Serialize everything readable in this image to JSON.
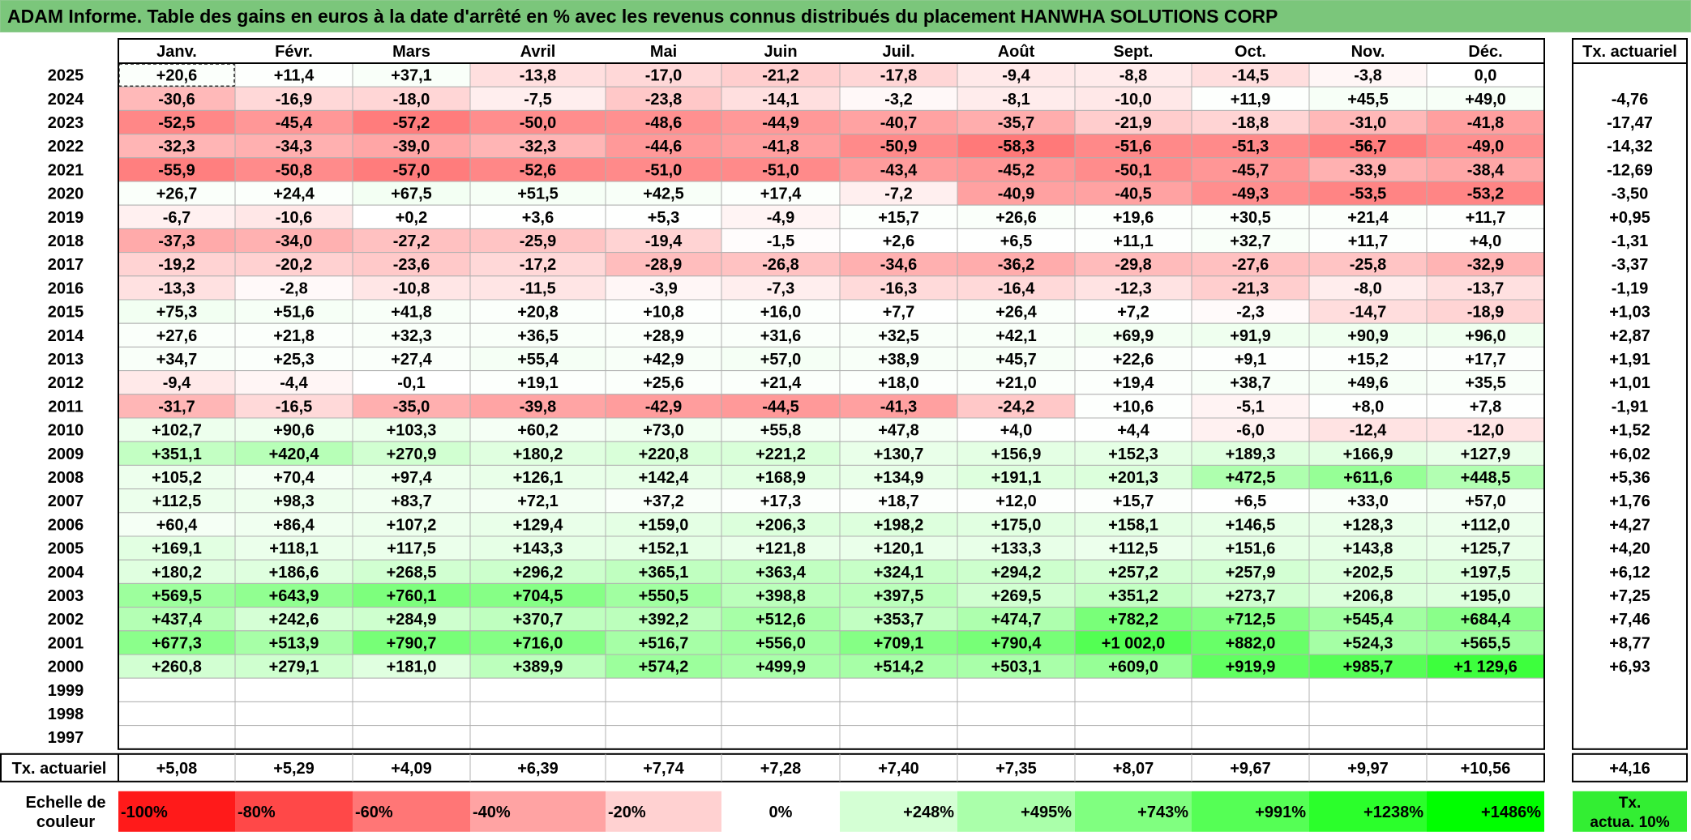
{
  "page_title": "ADAM Informe. Table des gains en euros à la date d'arrêté en % avec les revenus connus distribués du placement HANWHA SOLUTIONS CORP",
  "chart_data": {
    "type": "heatmap",
    "title": "ADAM Informe. Table des gains en euros à la date d'arrêté en % avec les revenus connus distribués du placement HANWHA SOLUTIONS CORP",
    "columns": [
      "Janv.",
      "Févr.",
      "Mars",
      "Avril",
      "Mai",
      "Juin",
      "Juil.",
      "Août",
      "Sept.",
      "Oct.",
      "Nov.",
      "Déc."
    ],
    "annual_header": "Tx. actuariel",
    "rows": [
      {
        "year": "2025",
        "values": [
          "+20,6",
          "+11,4",
          "+37,1",
          "-13,8",
          "-17,0",
          "-21,2",
          "-17,8",
          "-9,4",
          "-8,8",
          "-14,5",
          "-3,8",
          "0,0"
        ],
        "rate": ""
      },
      {
        "year": "2024",
        "values": [
          "-30,6",
          "-16,9",
          "-18,0",
          "-7,5",
          "-23,8",
          "-14,1",
          "-3,2",
          "-8,1",
          "-10,0",
          "+11,9",
          "+45,5",
          "+49,0"
        ],
        "rate": "-4,76"
      },
      {
        "year": "2023",
        "values": [
          "-52,5",
          "-45,4",
          "-57,2",
          "-50,0",
          "-48,6",
          "-44,9",
          "-40,7",
          "-35,7",
          "-21,9",
          "-18,8",
          "-31,0",
          "-41,8"
        ],
        "rate": "-17,47"
      },
      {
        "year": "2022",
        "values": [
          "-32,3",
          "-34,3",
          "-39,0",
          "-32,3",
          "-44,6",
          "-41,8",
          "-50,9",
          "-58,3",
          "-51,6",
          "-51,3",
          "-56,7",
          "-49,0"
        ],
        "rate": "-14,32"
      },
      {
        "year": "2021",
        "values": [
          "-55,9",
          "-50,8",
          "-57,0",
          "-52,6",
          "-51,0",
          "-51,0",
          "-43,4",
          "-45,2",
          "-50,1",
          "-45,7",
          "-33,9",
          "-38,4"
        ],
        "rate": "-12,69"
      },
      {
        "year": "2020",
        "values": [
          "+26,7",
          "+24,4",
          "+67,5",
          "+51,5",
          "+42,5",
          "+17,4",
          "-7,2",
          "-40,9",
          "-40,5",
          "-49,3",
          "-53,5",
          "-53,2"
        ],
        "rate": "-3,50"
      },
      {
        "year": "2019",
        "values": [
          "-6,7",
          "-10,6",
          "+0,2",
          "+3,6",
          "+5,3",
          "-4,9",
          "+15,7",
          "+26,6",
          "+19,6",
          "+30,5",
          "+21,4",
          "+11,7"
        ],
        "rate": "+0,95"
      },
      {
        "year": "2018",
        "values": [
          "-37,3",
          "-34,0",
          "-27,2",
          "-25,9",
          "-19,4",
          "-1,5",
          "+2,6",
          "+6,5",
          "+11,1",
          "+32,7",
          "+11,7",
          "+4,0"
        ],
        "rate": "-1,31"
      },
      {
        "year": "2017",
        "values": [
          "-19,2",
          "-20,2",
          "-23,6",
          "-17,2",
          "-28,9",
          "-26,8",
          "-34,6",
          "-36,2",
          "-29,8",
          "-27,6",
          "-25,8",
          "-32,9"
        ],
        "rate": "-3,37"
      },
      {
        "year": "2016",
        "values": [
          "-13,3",
          "-2,8",
          "-10,8",
          "-11,5",
          "-3,9",
          "-7,3",
          "-16,3",
          "-16,4",
          "-12,3",
          "-21,3",
          "-8,0",
          "-13,7"
        ],
        "rate": "-1,19"
      },
      {
        "year": "2015",
        "values": [
          "+75,3",
          "+51,6",
          "+41,8",
          "+20,8",
          "+10,8",
          "+16,0",
          "+7,7",
          "+26,4",
          "+7,2",
          "-2,3",
          "-14,7",
          "-18,9"
        ],
        "rate": "+1,03"
      },
      {
        "year": "2014",
        "values": [
          "+27,6",
          "+21,8",
          "+32,3",
          "+36,5",
          "+28,9",
          "+31,6",
          "+32,5",
          "+42,1",
          "+69,9",
          "+91,9",
          "+90,9",
          "+96,0"
        ],
        "rate": "+2,87"
      },
      {
        "year": "2013",
        "values": [
          "+34,7",
          "+25,3",
          "+27,4",
          "+55,4",
          "+42,9",
          "+57,0",
          "+38,9",
          "+45,7",
          "+22,6",
          "+9,1",
          "+15,2",
          "+17,7"
        ],
        "rate": "+1,91"
      },
      {
        "year": "2012",
        "values": [
          "-9,4",
          "-4,4",
          "-0,1",
          "+19,1",
          "+25,6",
          "+21,4",
          "+18,0",
          "+21,0",
          "+19,4",
          "+38,7",
          "+49,6",
          "+35,5"
        ],
        "rate": "+1,01"
      },
      {
        "year": "2011",
        "values": [
          "-31,7",
          "-16,5",
          "-35,0",
          "-39,8",
          "-42,9",
          "-44,5",
          "-41,3",
          "-24,2",
          "+10,6",
          "-5,1",
          "+8,0",
          "+7,8"
        ],
        "rate": "-1,91"
      },
      {
        "year": "2010",
        "values": [
          "+102,7",
          "+90,6",
          "+103,3",
          "+60,2",
          "+73,0",
          "+55,8",
          "+47,8",
          "+4,0",
          "+4,4",
          "-6,0",
          "-12,4",
          "-12,0"
        ],
        "rate": "+1,52"
      },
      {
        "year": "2009",
        "values": [
          "+351,1",
          "+420,4",
          "+270,9",
          "+180,2",
          "+220,8",
          "+221,2",
          "+130,7",
          "+156,9",
          "+152,3",
          "+189,3",
          "+166,9",
          "+127,9"
        ],
        "rate": "+6,02"
      },
      {
        "year": "2008",
        "values": [
          "+105,2",
          "+70,4",
          "+97,4",
          "+126,1",
          "+142,4",
          "+168,9",
          "+134,9",
          "+191,1",
          "+201,3",
          "+472,5",
          "+611,6",
          "+448,5"
        ],
        "rate": "+5,36"
      },
      {
        "year": "2007",
        "values": [
          "+112,5",
          "+98,3",
          "+83,7",
          "+72,1",
          "+37,2",
          "+17,3",
          "+18,7",
          "+12,0",
          "+15,7",
          "+6,5",
          "+33,0",
          "+57,0"
        ],
        "rate": "+1,76"
      },
      {
        "year": "2006",
        "values": [
          "+60,4",
          "+86,4",
          "+107,2",
          "+129,4",
          "+159,0",
          "+206,3",
          "+198,2",
          "+175,0",
          "+158,1",
          "+146,5",
          "+128,3",
          "+112,0"
        ],
        "rate": "+4,27"
      },
      {
        "year": "2005",
        "values": [
          "+169,1",
          "+118,1",
          "+117,5",
          "+143,3",
          "+152,1",
          "+121,8",
          "+120,1",
          "+133,3",
          "+112,5",
          "+151,6",
          "+143,8",
          "+125,7"
        ],
        "rate": "+4,20"
      },
      {
        "year": "2004",
        "values": [
          "+180,2",
          "+186,6",
          "+268,5",
          "+296,2",
          "+365,1",
          "+363,4",
          "+324,1",
          "+294,2",
          "+257,2",
          "+257,9",
          "+202,5",
          "+197,5"
        ],
        "rate": "+6,12"
      },
      {
        "year": "2003",
        "values": [
          "+569,5",
          "+643,9",
          "+760,1",
          "+704,5",
          "+550,5",
          "+398,8",
          "+397,5",
          "+269,5",
          "+351,2",
          "+273,7",
          "+206,8",
          "+195,0"
        ],
        "rate": "+7,25"
      },
      {
        "year": "2002",
        "values": [
          "+437,4",
          "+242,6",
          "+284,9",
          "+370,7",
          "+392,2",
          "+512,6",
          "+353,7",
          "+474,7",
          "+782,2",
          "+712,5",
          "+545,4",
          "+684,4"
        ],
        "rate": "+7,46"
      },
      {
        "year": "2001",
        "values": [
          "+677,3",
          "+513,9",
          "+790,7",
          "+716,0",
          "+516,7",
          "+556,0",
          "+709,1",
          "+790,4",
          "+1 002,0",
          "+882,0",
          "+524,3",
          "+565,5"
        ],
        "rate": "+8,77"
      },
      {
        "year": "2000",
        "values": [
          "+260,8",
          "+279,1",
          "+181,0",
          "+389,9",
          "+574,2",
          "+499,9",
          "+514,2",
          "+503,1",
          "+609,0",
          "+919,9",
          "+985,7",
          "+1 129,6"
        ],
        "rate": "+6,93"
      },
      {
        "year": "1999",
        "values": [
          "",
          "",
          "",
          "",
          "",
          "",
          "",
          "",
          "",
          "",
          "",
          ""
        ],
        "rate": ""
      },
      {
        "year": "1998",
        "values": [
          "",
          "",
          "",
          "",
          "",
          "",
          "",
          "",
          "",
          "",
          "",
          ""
        ],
        "rate": ""
      },
      {
        "year": "1997",
        "values": [
          "",
          "",
          "",
          "",
          "",
          "",
          "",
          "",
          "",
          "",
          "",
          ""
        ],
        "rate": ""
      }
    ],
    "footer": {
      "label": "Tx. actuariel",
      "values": [
        "+5,08",
        "+5,29",
        "+4,09",
        "+6,39",
        "+7,74",
        "+7,28",
        "+7,40",
        "+7,35",
        "+8,07",
        "+9,67",
        "+9,97",
        "+10,56"
      ],
      "total": "+4,16"
    },
    "scale": {
      "label_line1": "Echelle de",
      "label_line2": "couleur",
      "stops": [
        "-100%",
        "-80%",
        "-60%",
        "-40%",
        "-20%",
        "0%",
        "+248%",
        "+495%",
        "+743%",
        "+991%",
        "+1238%",
        "+1486%"
      ],
      "rate_line1": "Tx.",
      "rate_line2": "actua. 10%"
    },
    "color_scale": {
      "neg_max": -100,
      "pos_max": 1486,
      "neg_color": "#ff1a1a",
      "pos_color": "#00ff00",
      "zero_color": "#ffffff"
    },
    "colors": {
      "title_bg": "#7bc67b",
      "rate_box": "#33ee33",
      "grid": "#b0b0b0",
      "border": "#000000"
    }
  }
}
